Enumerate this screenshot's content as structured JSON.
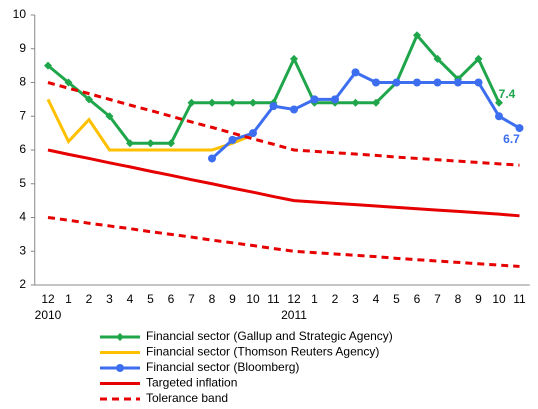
{
  "chart_data": {
    "type": "line",
    "categories": [
      "12",
      "1",
      "2",
      "3",
      "4",
      "5",
      "6",
      "7",
      "8",
      "9",
      "10",
      "11",
      "12",
      "1",
      "2",
      "3",
      "4",
      "5",
      "6",
      "7",
      "8",
      "9",
      "10",
      "11"
    ],
    "year_labels": [
      "2010",
      null,
      null,
      null,
      null,
      null,
      null,
      null,
      null,
      null,
      null,
      null,
      "2011",
      null,
      null,
      null,
      null,
      null,
      null,
      null,
      null,
      null,
      null,
      null
    ],
    "ylim": [
      2,
      10
    ],
    "yticks": [
      2,
      3,
      4,
      5,
      6,
      7,
      8,
      9,
      10
    ],
    "grid": false,
    "series": [
      {
        "name": "Financial sector (Gallup and Strategic Agency)",
        "color": "#1fa64a",
        "marker": "diamond",
        "values": [
          8.5,
          8.0,
          7.5,
          7.0,
          6.2,
          6.2,
          6.2,
          7.4,
          7.4,
          7.4,
          7.4,
          7.4,
          8.7,
          7.4,
          7.4,
          7.4,
          7.4,
          8.0,
          9.4,
          8.7,
          8.1,
          8.7,
          7.4,
          null
        ],
        "value_labels": [
          null,
          null,
          null,
          null,
          null,
          null,
          null,
          null,
          null,
          null,
          null,
          null,
          null,
          null,
          null,
          null,
          null,
          null,
          null,
          null,
          null,
          null,
          "7.4",
          null
        ]
      },
      {
        "name": "Financial sector (Thomson Reuters Agency)",
        "color": "#ffc000",
        "marker": "none",
        "values": [
          7.5,
          6.25,
          6.9,
          6.0,
          6.0,
          6.0,
          6.0,
          6.0,
          6.0,
          6.2,
          6.45,
          null,
          null,
          null,
          null,
          null,
          null,
          null,
          null,
          null,
          null,
          null,
          null,
          null
        ]
      },
      {
        "name": "Financial sector (Bloomberg)",
        "color": "#3d6ef0",
        "marker": "circle",
        "values": [
          null,
          null,
          null,
          null,
          null,
          null,
          null,
          null,
          5.75,
          6.3,
          6.5,
          7.3,
          7.2,
          7.5,
          7.5,
          8.3,
          8.0,
          8.0,
          8.0,
          8.0,
          8.0,
          8.0,
          7.0,
          6.65
        ],
        "value_labels": [
          null,
          null,
          null,
          null,
          null,
          null,
          null,
          null,
          null,
          null,
          null,
          null,
          null,
          null,
          null,
          null,
          null,
          null,
          null,
          null,
          null,
          null,
          null,
          "6.7"
        ]
      },
      {
        "name": "Targeted inflation",
        "color": "#e60000",
        "marker": "none",
        "dash": false,
        "values": [
          6.0,
          5.87,
          5.75,
          5.62,
          5.5,
          5.37,
          5.25,
          5.12,
          5.0,
          4.87,
          4.75,
          4.62,
          4.5,
          4.46,
          4.42,
          4.38,
          4.34,
          4.3,
          4.26,
          4.22,
          4.18,
          4.14,
          4.1,
          4.05
        ]
      },
      {
        "name": "Tolerance band",
        "color": "#e60000",
        "marker": "none",
        "dash": true,
        "upper": [
          8.0,
          7.83,
          7.67,
          7.5,
          7.33,
          7.17,
          7.0,
          6.83,
          6.67,
          6.5,
          6.33,
          6.17,
          6.0,
          5.96,
          5.92,
          5.88,
          5.84,
          5.79,
          5.75,
          5.71,
          5.67,
          5.63,
          5.59,
          5.55
        ],
        "lower": [
          4.0,
          3.92,
          3.83,
          3.75,
          3.67,
          3.58,
          3.5,
          3.42,
          3.33,
          3.25,
          3.17,
          3.08,
          3.0,
          2.96,
          2.92,
          2.88,
          2.84,
          2.79,
          2.75,
          2.71,
          2.67,
          2.63,
          2.59,
          2.55
        ]
      }
    ]
  }
}
